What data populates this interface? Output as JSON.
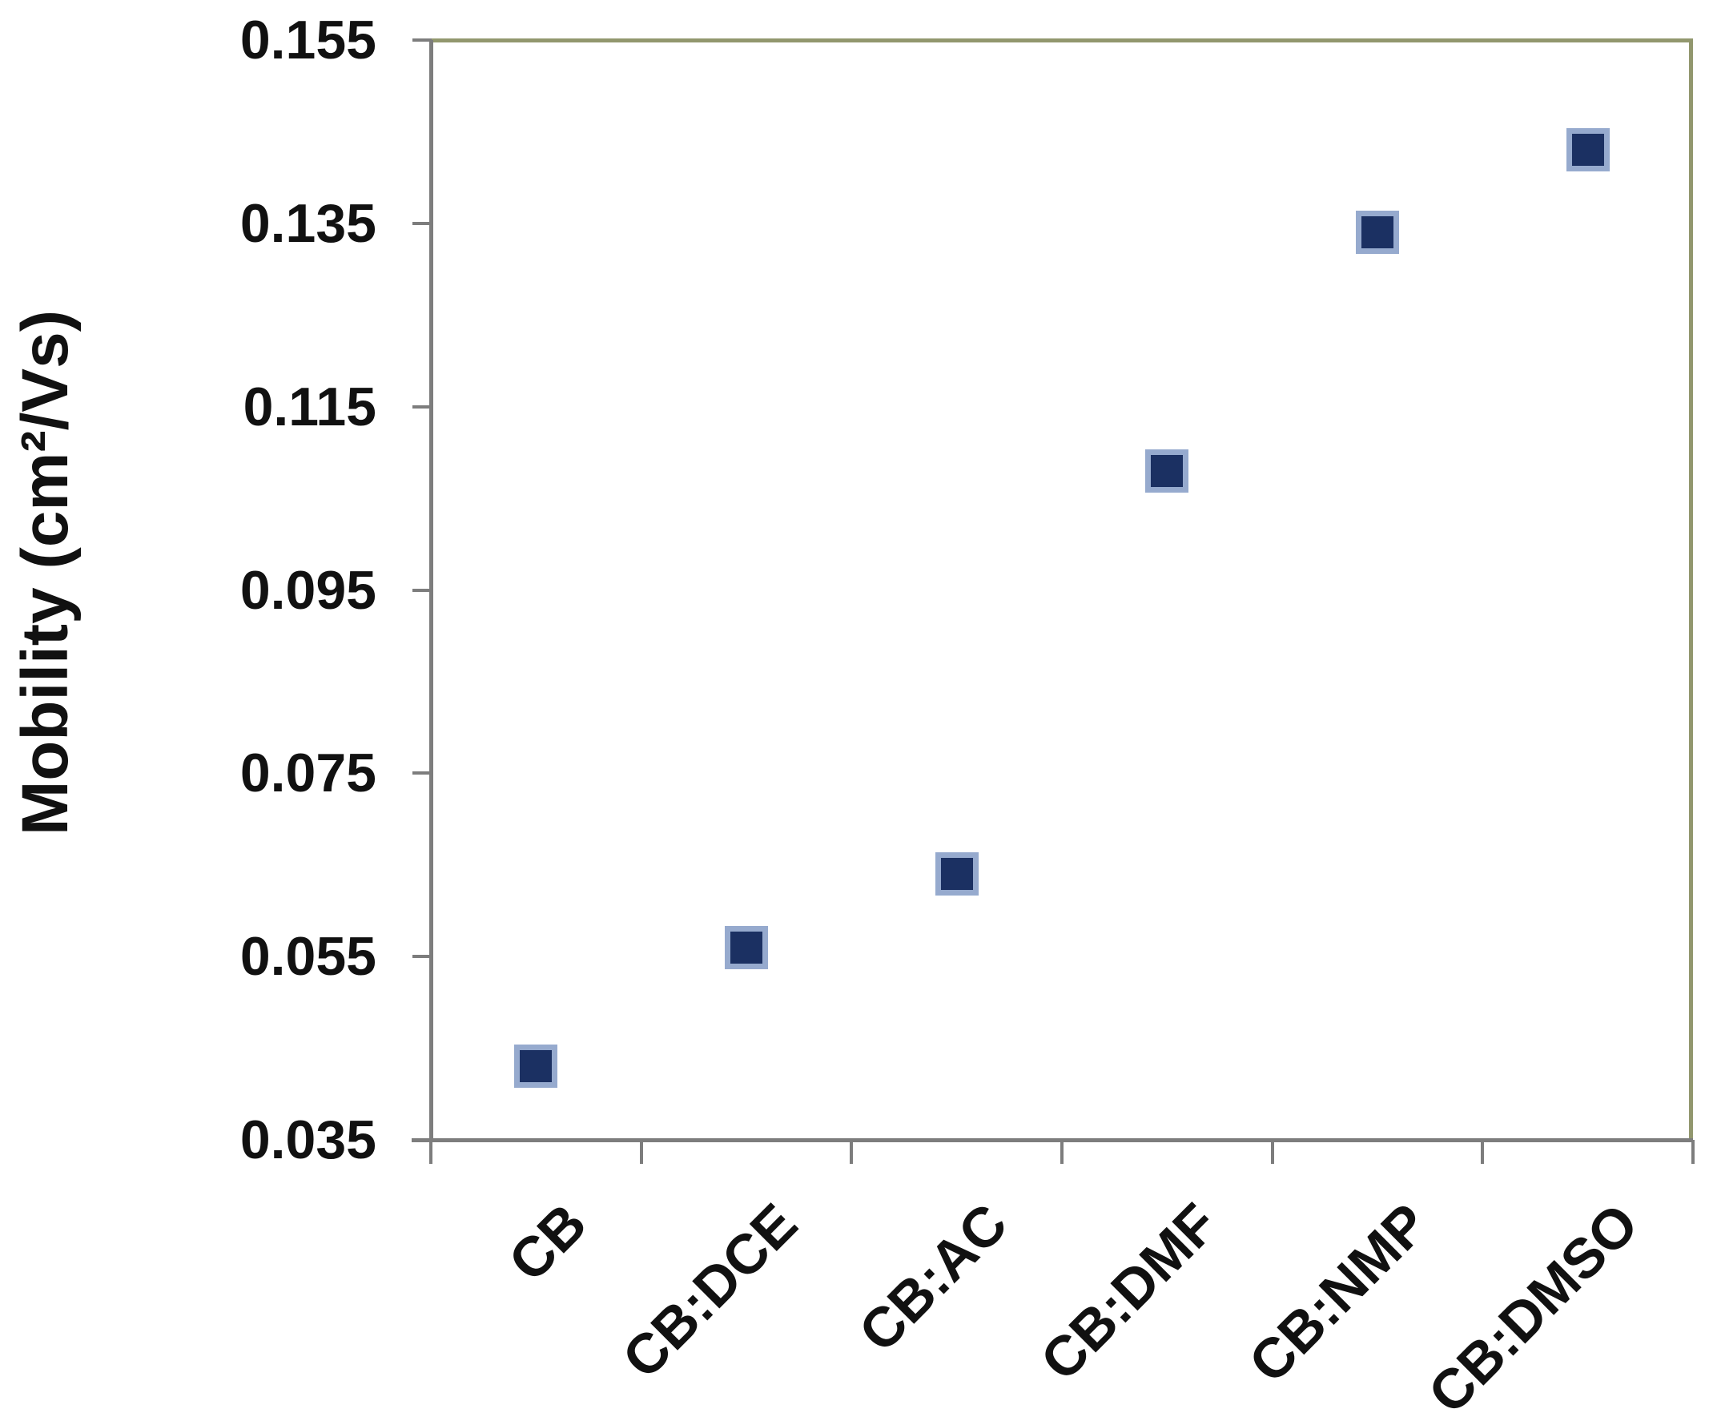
{
  "chart_data": {
    "type": "scatter",
    "title": "",
    "categories": [
      "CB",
      "CB:DCE",
      "CB:AC",
      "CB:DMF",
      "CB:NMP",
      "CB:DMSO"
    ],
    "series": [
      {
        "name": "mobility",
        "values": [
          0.043,
          0.056,
          0.064,
          0.108,
          0.134,
          0.143
        ]
      }
    ],
    "xlabel": "",
    "ylabel": "Mobility (cm²/Vs)",
    "ylim": [
      0.035,
      0.155
    ],
    "ytick_step": 0.02,
    "ytick_labels": [
      "0.155",
      "0.135",
      "0.115",
      "0.095",
      "0.075",
      "0.055",
      "0.035"
    ],
    "x_tick_label_rotation_deg": -45,
    "grid": false,
    "legend": false,
    "marker": {
      "shape": "square",
      "fill": "#1B3062",
      "border": "#96AACE"
    },
    "colors": {
      "axis": "#7D7D7D",
      "frame": "#92976E",
      "text": "#111111"
    }
  }
}
